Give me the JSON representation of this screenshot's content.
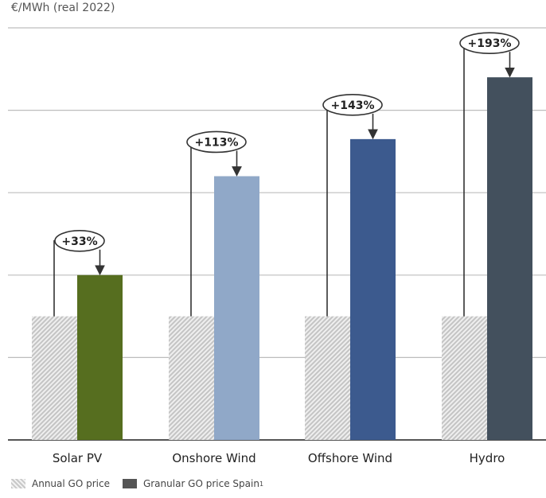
{
  "chart_data": {
    "type": "bar",
    "ylabel": "€/MWh (real 2022)",
    "categories": [
      "Solar PV",
      "Onshore Wind",
      "Offshore Wind",
      "Hydro"
    ],
    "series": [
      {
        "name": "Annual GO price",
        "values": [
          1.5,
          1.5,
          1.5,
          1.5
        ]
      },
      {
        "name": "Granular GO price Spain",
        "values": [
          2.0,
          3.2,
          3.65,
          4.4
        ]
      }
    ],
    "annotations": [
      "+33%",
      "+113%",
      "+143%",
      "+193%"
    ],
    "ylim": [
      0,
      5
    ],
    "grid": true,
    "legend_position": "bottom-left",
    "colors": {
      "annual": "#cfcfcf",
      "granular": [
        "#566e1f",
        "#90a8c8",
        "#3c5a8e",
        "#43505d"
      ]
    }
  },
  "legend": {
    "annual_label": "Annual GO price",
    "granular_label": "Granular GO price Spain",
    "granular_sup": "1"
  }
}
